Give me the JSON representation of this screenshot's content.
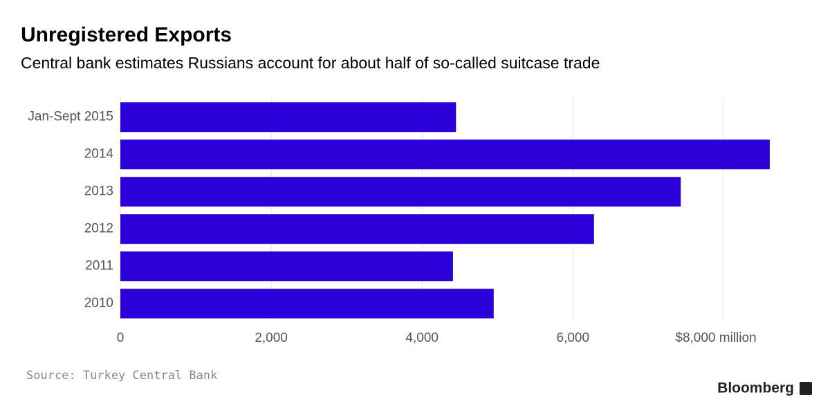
{
  "chart_data": {
    "type": "hbar",
    "title": "Unregistered Exports",
    "subtitle": "Central bank estimates Russians account for about half of so-called suitcase trade",
    "categories": [
      "Jan-Sept 2015",
      "2014",
      "2013",
      "2012",
      "2011",
      "2010"
    ],
    "values": [
      4450,
      8610,
      7430,
      6280,
      4410,
      4950
    ],
    "color": "#2b00d9",
    "xlim": [
      0,
      8620
    ],
    "xticks": [
      0,
      {
        "value": 2000,
        "label": "2,000"
      },
      {
        "value": 4000,
        "label": "4,000"
      },
      {
        "value": 6000,
        "label": "6,000"
      },
      {
        "value": 8000,
        "label": "$8,000 million"
      }
    ],
    "grid": true,
    "source": "Source: Turkey Central Bank",
    "brand": "Bloomberg"
  }
}
